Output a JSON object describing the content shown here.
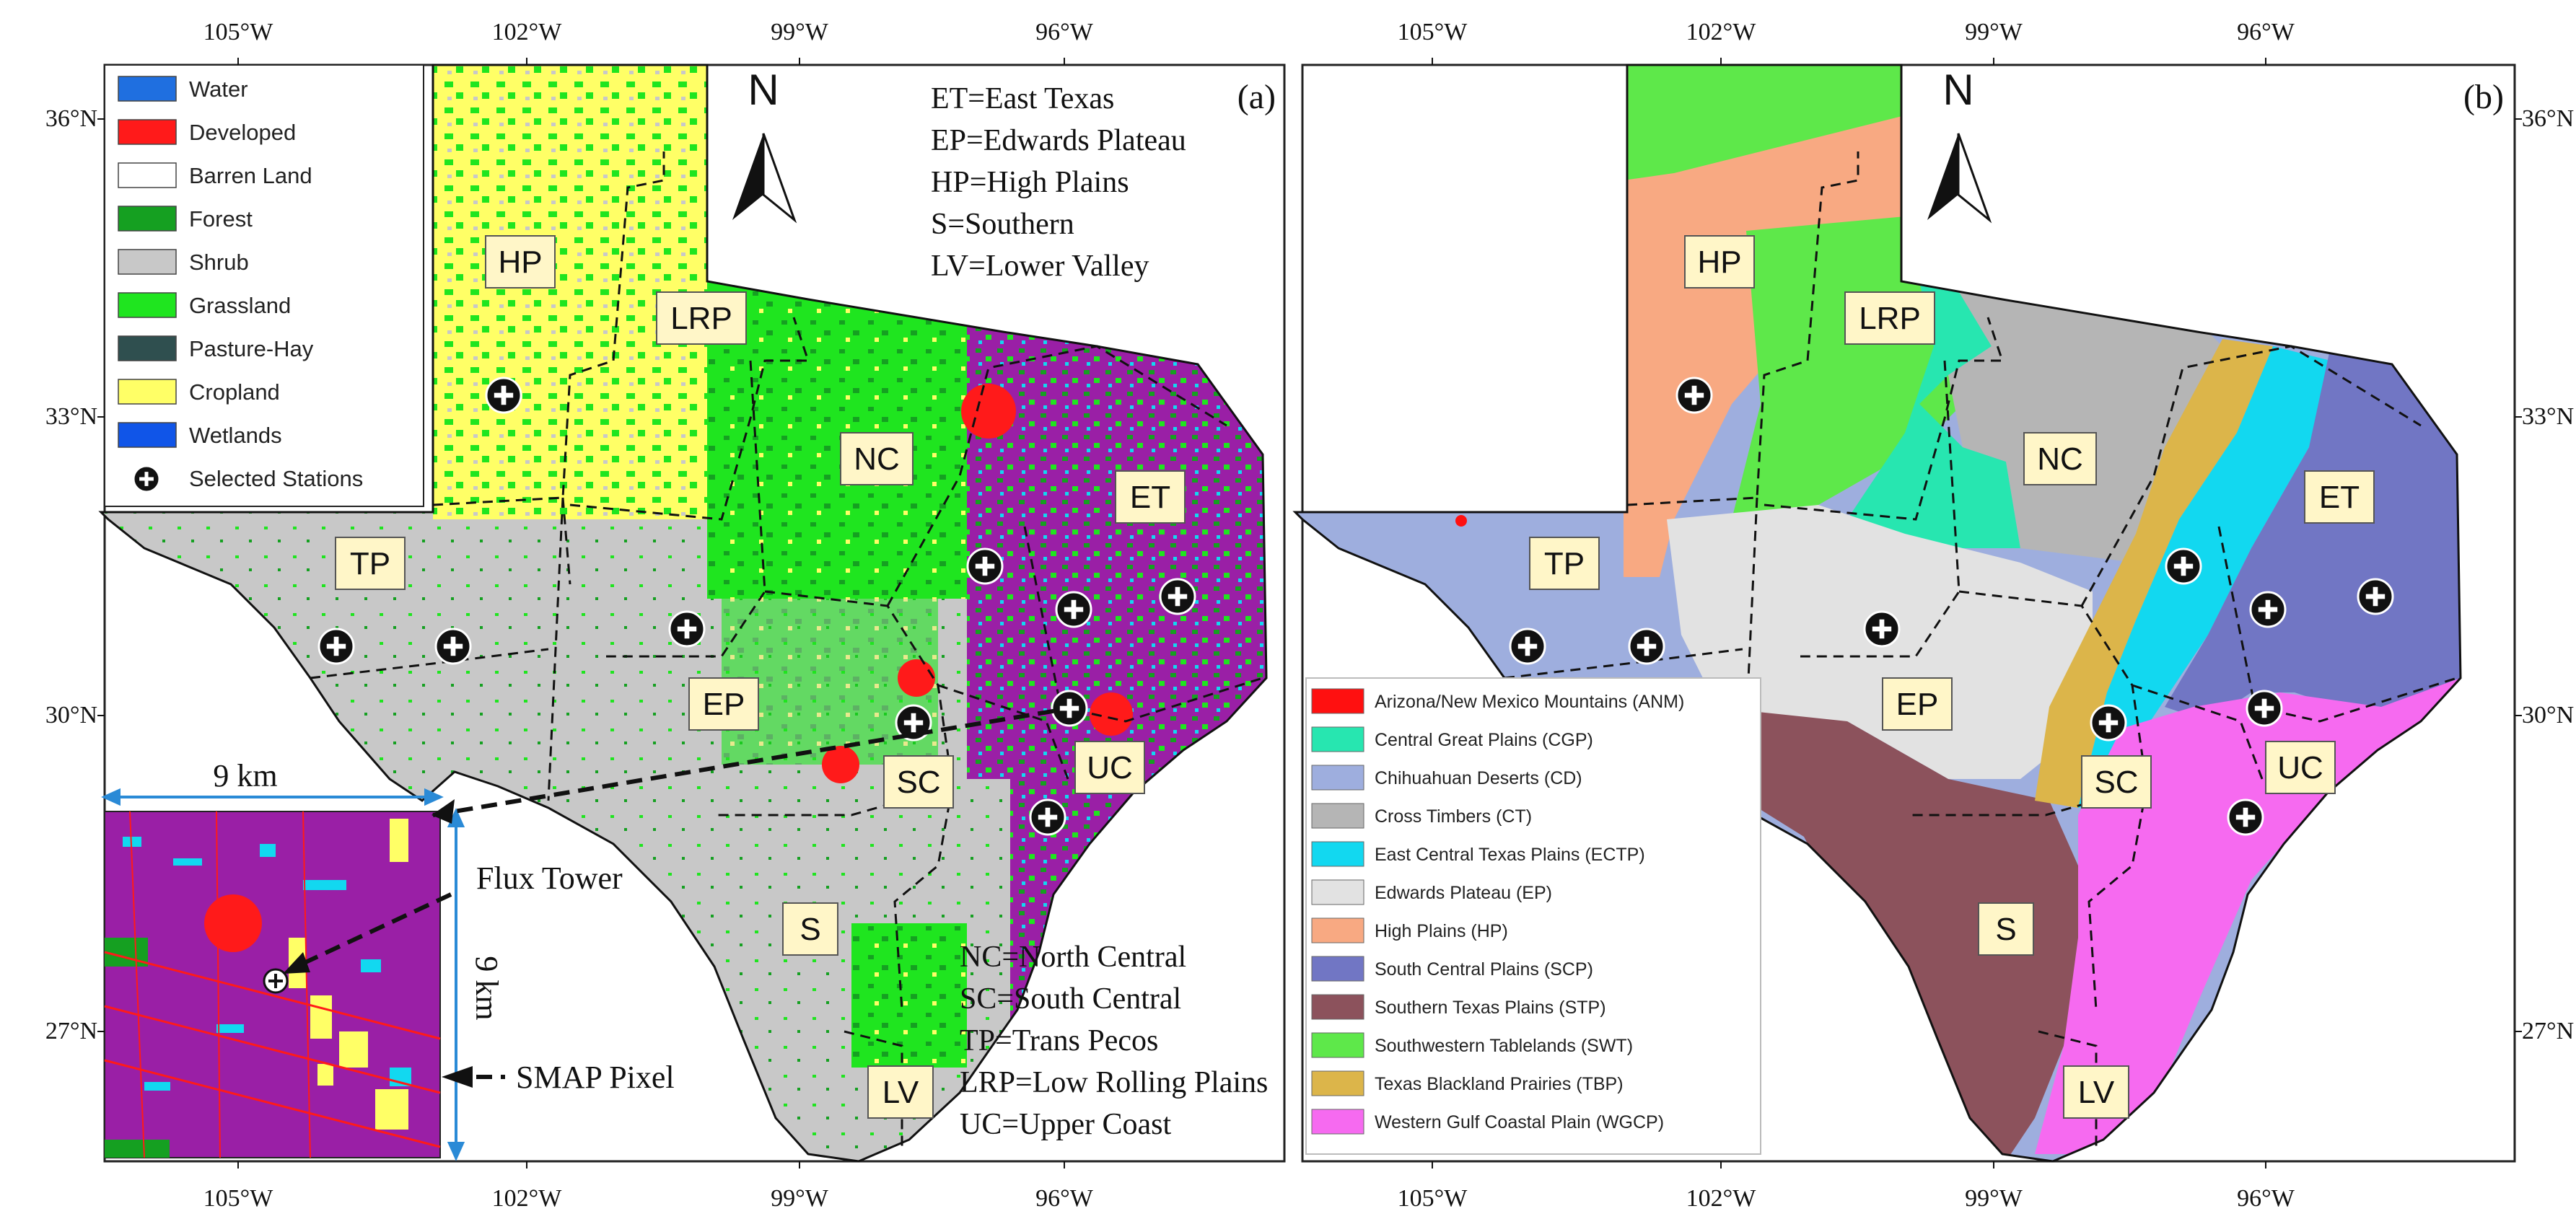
{
  "panel_a": {
    "label": "(a)",
    "lon_labels_top": [
      "105°W",
      "102°W",
      "99°W",
      "96°W"
    ],
    "lon_labels_bottom": [
      "105°W",
      "102°W",
      "99°W",
      "96°W"
    ],
    "lat_labels_left": [
      "36°N",
      "33°N",
      "30°N",
      "27°N"
    ],
    "north": "N",
    "legend": [
      {
        "label": "Water",
        "color": "#1f6fe0"
      },
      {
        "label": "Developed",
        "color": "#ff1a1a"
      },
      {
        "label": "Barren Land",
        "color": "#ffffff"
      },
      {
        "label": "Forest",
        "color": "#15a021"
      },
      {
        "label": "Shrub",
        "color": "#c8c8c8"
      },
      {
        "label": "Grassland",
        "color": "#1fe51f"
      },
      {
        "label": "Pasture-Hay",
        "color": "#2f4f4f"
      },
      {
        "label": "Cropland",
        "color": "#ffff66"
      },
      {
        "label": "Wetlands",
        "color": "#1055e8"
      },
      {
        "label": "Selected Stations",
        "color": "#000000"
      }
    ],
    "abbr_top": [
      "ET=East Texas",
      "EP=Edwards Plateau",
      "HP=High Plains",
      "S=Southern",
      "LV=Lower Valley"
    ],
    "abbr_bottom": [
      "NC=North Central",
      "SC=South Central",
      "TP=Trans Pecos",
      "LRP=Low Rolling Plains",
      "UC=Upper Coast"
    ],
    "regions": [
      "HP",
      "LRP",
      "NC",
      "ET",
      "TP",
      "EP",
      "SC",
      "UC",
      "S",
      "LV"
    ],
    "inset": {
      "width_label": "9 km",
      "height_label": "9 km",
      "flux_tower": "Flux Tower",
      "smap_pixel": "SMAP Pixel"
    }
  },
  "panel_b": {
    "label": "(b)",
    "lon_labels_top": [
      "105°W",
      "102°W",
      "99°W",
      "96°W"
    ],
    "lon_labels_bottom": [
      "105°W",
      "102°W",
      "99°W",
      "96°W"
    ],
    "lat_labels_right": [
      "36°N",
      "33°N",
      "30°N",
      "27°N"
    ],
    "north": "N",
    "legend": [
      {
        "label": "Arizona/New Mexico Mountains (ANM)",
        "color": "#ff1010"
      },
      {
        "label": "Central Great Plains (CGP)",
        "color": "#27e6b0"
      },
      {
        "label": "Chihuahuan Deserts (CD)",
        "color": "#9eaede"
      },
      {
        "label": "Cross Timbers (CT)",
        "color": "#b5b5b5"
      },
      {
        "label": "East Central Texas Plains (ECTP)",
        "color": "#12d8f0"
      },
      {
        "label": "Edwards Plateau (EP)",
        "color": "#e2e2e2"
      },
      {
        "label": "High Plains (HP)",
        "color": "#f8a982"
      },
      {
        "label": "South Central Plains (SCP)",
        "color": "#7176c4"
      },
      {
        "label": "Southern Texas Plains (STP)",
        "color": "#8c525c"
      },
      {
        "label": "Southwestern Tablelands (SWT)",
        "color": "#5ee84a"
      },
      {
        "label": "Texas Blackland Prairies (TBP)",
        "color": "#dcb54a"
      },
      {
        "label": "Western Gulf Coastal Plain (WGCP)",
        "color": "#f66af0"
      }
    ],
    "regions": [
      "HP",
      "LRP",
      "NC",
      "ET",
      "TP",
      "EP",
      "SC",
      "UC",
      "S",
      "LV"
    ]
  }
}
